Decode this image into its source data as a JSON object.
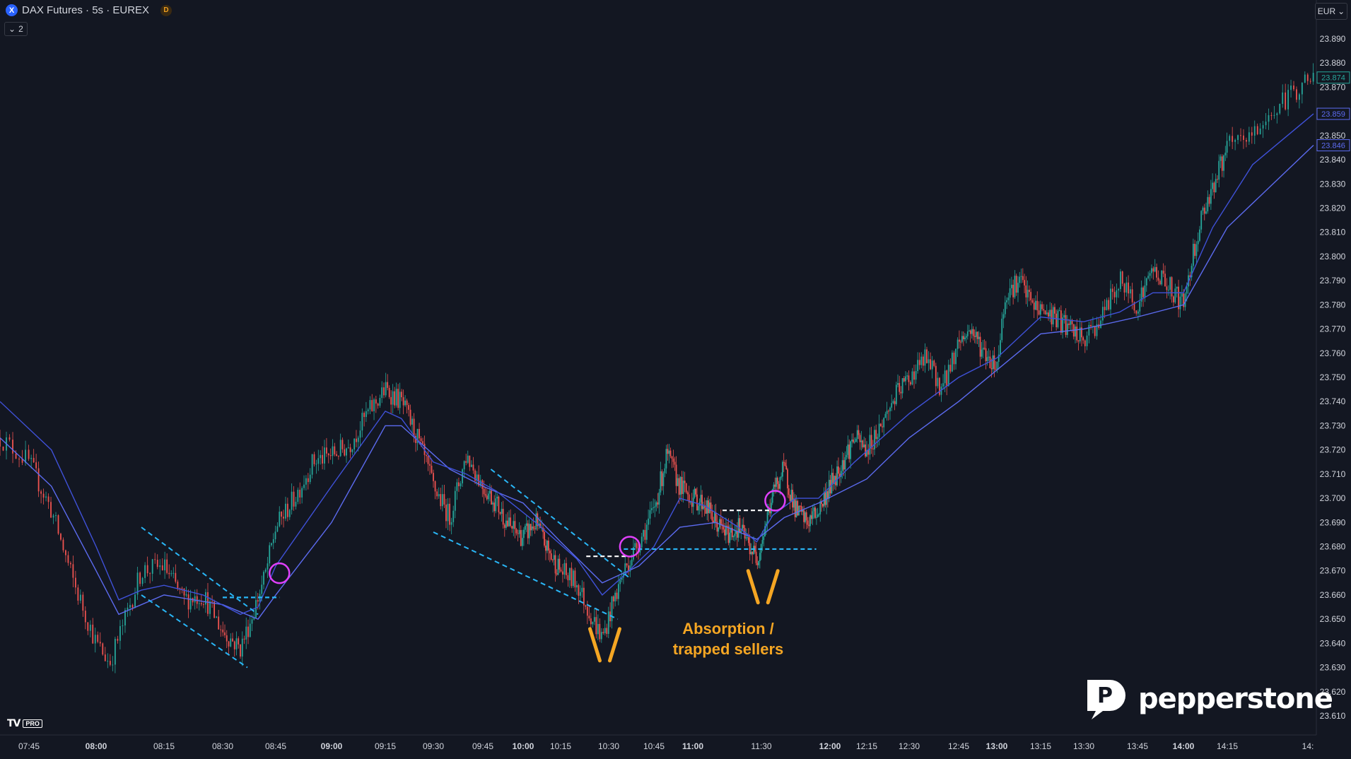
{
  "header": {
    "symbol_badge": "X",
    "title": "DAX Futures · 5s · EUREX",
    "session_badge": "D",
    "collapse_label": "2",
    "currency": "EUR"
  },
  "chart_data": {
    "type": "candlestick",
    "y_ticks": [
      "23.610",
      "23.620",
      "23.630",
      "23.640",
      "23.650",
      "23.660",
      "23.670",
      "23.680",
      "23.690",
      "23.700",
      "23.710",
      "23.720",
      "23.730",
      "23.740",
      "23.750",
      "23.760",
      "23.770",
      "23.780",
      "23.790",
      "23.800",
      "23.810",
      "23.820",
      "23.830",
      "23.840",
      "23.850",
      "23.860",
      "23.870",
      "23.880",
      "23.890"
    ],
    "ylim": [
      23605,
      23895
    ],
    "x_ticks": [
      {
        "label": "07:45",
        "bold": false
      },
      {
        "label": "08:00",
        "bold": true
      },
      {
        "label": "08:15",
        "bold": false
      },
      {
        "label": "08:30",
        "bold": false
      },
      {
        "label": "08:45",
        "bold": false
      },
      {
        "label": "09:00",
        "bold": true
      },
      {
        "label": "09:15",
        "bold": false
      },
      {
        "label": "09:30",
        "bold": false
      },
      {
        "label": "09:45",
        "bold": false
      },
      {
        "label": "10:00",
        "bold": true
      },
      {
        "label": "10:15",
        "bold": false
      },
      {
        "label": "10:30",
        "bold": false
      },
      {
        "label": "10:45",
        "bold": false
      },
      {
        "label": "11:00",
        "bold": true
      },
      {
        "label": "11:30",
        "bold": false
      },
      {
        "label": "12:00",
        "bold": true
      },
      {
        "label": "12:15",
        "bold": false
      },
      {
        "label": "12:30",
        "bold": false
      },
      {
        "label": "12:45",
        "bold": false
      },
      {
        "label": "13:00",
        "bold": true
      },
      {
        "label": "13:15",
        "bold": false
      },
      {
        "label": "13:30",
        "bold": false
      },
      {
        "label": "13:45",
        "bold": false
      },
      {
        "label": "14:00",
        "bold": true
      },
      {
        "label": "14:15",
        "bold": false
      },
      {
        "label": "14:",
        "bold": false
      }
    ],
    "price_tags": [
      {
        "value": "23.874",
        "color": "#26a69a"
      },
      {
        "value": "23.859",
        "color": "#5c6bf0"
      },
      {
        "value": "23.846",
        "color": "#5c6bf0"
      }
    ],
    "price_path": [
      [
        "07:40",
        23725
      ],
      [
        "07:45",
        23715
      ],
      [
        "07:50",
        23695
      ],
      [
        "07:55",
        23665
      ],
      [
        "08:00",
        23640
      ],
      [
        "08:03",
        23632
      ],
      [
        "08:06",
        23648
      ],
      [
        "08:10",
        23670
      ],
      [
        "08:15",
        23672
      ],
      [
        "08:20",
        23658
      ],
      [
        "08:25",
        23660
      ],
      [
        "08:30",
        23645
      ],
      [
        "08:35",
        23638
      ],
      [
        "08:38",
        23650
      ],
      [
        "08:42",
        23668
      ],
      [
        "08:45",
        23688
      ],
      [
        "08:50",
        23700
      ],
      [
        "08:55",
        23715
      ],
      [
        "09:00",
        23718
      ],
      [
        "09:05",
        23722
      ],
      [
        "09:10",
        23735
      ],
      [
        "09:15",
        23745
      ],
      [
        "09:20",
        23740
      ],
      [
        "09:25",
        23725
      ],
      [
        "09:30",
        23705
      ],
      [
        "09:35",
        23692
      ],
      [
        "09:40",
        23718
      ],
      [
        "09:45",
        23705
      ],
      [
        "09:50",
        23698
      ],
      [
        "09:55",
        23688
      ],
      [
        "10:00",
        23684
      ],
      [
        "10:05",
        23690
      ],
      [
        "10:10",
        23678
      ],
      [
        "10:15",
        23670
      ],
      [
        "10:20",
        23665
      ],
      [
        "10:25",
        23650
      ],
      [
        "10:28",
        23642
      ],
      [
        "10:31",
        23655
      ],
      [
        "10:35",
        23670
      ],
      [
        "10:40",
        23682
      ],
      [
        "10:45",
        23695
      ],
      [
        "10:50",
        23718
      ],
      [
        "10:55",
        23705
      ],
      [
        "11:00",
        23700
      ],
      [
        "11:05",
        23698
      ],
      [
        "11:10",
        23690
      ],
      [
        "11:15",
        23685
      ],
      [
        "11:20",
        23688
      ],
      [
        "11:25",
        23680
      ],
      [
        "11:28",
        23675
      ],
      [
        "11:32",
        23690
      ],
      [
        "11:36",
        23705
      ],
      [
        "11:40",
        23712
      ],
      [
        "11:45",
        23695
      ],
      [
        "11:50",
        23690
      ],
      [
        "11:55",
        23695
      ],
      [
        "12:00",
        23705
      ],
      [
        "12:05",
        23715
      ],
      [
        "12:10",
        23725
      ],
      [
        "12:15",
        23720
      ],
      [
        "12:20",
        23730
      ],
      [
        "12:25",
        23742
      ],
      [
        "12:30",
        23750
      ],
      [
        "12:35",
        23758
      ],
      [
        "12:40",
        23745
      ],
      [
        "12:45",
        23765
      ],
      [
        "12:50",
        23770
      ],
      [
        "12:55",
        23760
      ],
      [
        "13:00",
        23755
      ],
      [
        "13:03",
        23785
      ],
      [
        "13:08",
        23790
      ],
      [
        "13:12",
        23780
      ],
      [
        "13:15",
        23778
      ],
      [
        "13:20",
        23775
      ],
      [
        "13:25",
        23770
      ],
      [
        "13:30",
        23765
      ],
      [
        "13:35",
        23775
      ],
      [
        "13:40",
        23790
      ],
      [
        "13:45",
        23780
      ],
      [
        "13:50",
        23795
      ],
      [
        "13:55",
        23788
      ],
      [
        "14:00",
        23780
      ],
      [
        "14:03",
        23800
      ],
      [
        "14:07",
        23820
      ],
      [
        "14:12",
        23835
      ],
      [
        "14:15",
        23845
      ],
      [
        "14:20",
        23850
      ],
      [
        "14:24",
        23860
      ],
      [
        "14:28",
        23868
      ],
      [
        "14:32",
        23875
      ]
    ],
    "ema_fast": [
      [
        "07:40",
        23740
      ],
      [
        "07:50",
        23720
      ],
      [
        "08:00",
        23680
      ],
      [
        "08:05",
        23658
      ],
      [
        "08:10",
        23662
      ],
      [
        "08:15",
        23664
      ],
      [
        "08:25",
        23660
      ],
      [
        "08:35",
        23652
      ],
      [
        "08:40",
        23655
      ],
      [
        "08:45",
        23672
      ],
      [
        "09:00",
        23705
      ],
      [
        "09:15",
        23736
      ],
      [
        "09:20",
        23733
      ],
      [
        "09:30",
        23715
      ],
      [
        "09:40",
        23710
      ],
      [
        "09:50",
        23703
      ],
      [
        "10:05",
        23690
      ],
      [
        "10:20",
        23675
      ],
      [
        "10:28",
        23660
      ],
      [
        "10:35",
        23668
      ],
      [
        "10:45",
        23680
      ],
      [
        "10:55",
        23700
      ],
      [
        "11:05",
        23697
      ],
      [
        "11:20",
        23688
      ],
      [
        "11:28",
        23682
      ],
      [
        "11:35",
        23693
      ],
      [
        "11:45",
        23700
      ],
      [
        "11:55",
        23700
      ],
      [
        "12:10",
        23715
      ],
      [
        "12:30",
        23735
      ],
      [
        "12:45",
        23750
      ],
      [
        "13:00",
        23758
      ],
      [
        "13:15",
        23775
      ],
      [
        "13:30",
        23773
      ],
      [
        "13:40",
        23777
      ],
      [
        "13:50",
        23785
      ],
      [
        "14:00",
        23785
      ],
      [
        "14:10",
        23812
      ],
      [
        "14:20",
        23838
      ],
      [
        "14:32",
        23859
      ]
    ],
    "ema_slow": [
      [
        "07:40",
        23725
      ],
      [
        "07:50",
        23705
      ],
      [
        "08:00",
        23670
      ],
      [
        "08:05",
        23652
      ],
      [
        "08:15",
        23660
      ],
      [
        "08:30",
        23656
      ],
      [
        "08:40",
        23650
      ],
      [
        "08:45",
        23660
      ],
      [
        "09:00",
        23690
      ],
      [
        "09:15",
        23730
      ],
      [
        "09:20",
        23730
      ],
      [
        "09:35",
        23712
      ],
      [
        "09:45",
        23705
      ],
      [
        "10:00",
        23698
      ],
      [
        "10:15",
        23682
      ],
      [
        "10:28",
        23665
      ],
      [
        "10:40",
        23672
      ],
      [
        "10:55",
        23688
      ],
      [
        "11:10",
        23690
      ],
      [
        "11:28",
        23683
      ],
      [
        "11:40",
        23692
      ],
      [
        "11:55",
        23698
      ],
      [
        "12:15",
        23708
      ],
      [
        "12:30",
        23725
      ],
      [
        "12:45",
        23740
      ],
      [
        "13:00",
        23753
      ],
      [
        "13:15",
        23768
      ],
      [
        "13:30",
        23770
      ],
      [
        "13:45",
        23775
      ],
      [
        "14:00",
        23780
      ],
      [
        "14:15",
        23812
      ],
      [
        "14:32",
        23846
      ]
    ],
    "trendlines": [
      {
        "from": [
          "08:10",
          23688
        ],
        "to": [
          "08:40",
          23652
        ],
        "style": "dashed",
        "color": "#29b6f6"
      },
      {
        "from": [
          "08:10",
          23660
        ],
        "to": [
          "08:37",
          23630
        ],
        "style": "dashed",
        "color": "#29b6f6"
      },
      {
        "from": [
          "09:48",
          23712
        ],
        "to": [
          "10:37",
          23667
        ],
        "style": "dashed",
        "color": "#29b6f6"
      },
      {
        "from": [
          "09:30",
          23686
        ],
        "to": [
          "10:33",
          23650
        ],
        "style": "dashed",
        "color": "#29b6f6"
      }
    ],
    "levels": [
      {
        "from": [
          "08:30",
          23659
        ],
        "to": [
          "08:46",
          23659
        ],
        "color": "#29b6f6"
      },
      {
        "from": [
          "10:35",
          23679
        ],
        "to": [
          "11:54",
          23679
        ],
        "color": "#29b6f6"
      },
      {
        "from": [
          "10:23",
          23676
        ],
        "to": [
          "10:36",
          23676
        ],
        "color": "#ffffff"
      },
      {
        "from": [
          "11:13",
          23695
        ],
        "to": [
          "11:36",
          23695
        ],
        "color": "#ffffff"
      }
    ],
    "markers_circle": [
      [
        "08:46",
        23669
      ],
      [
        "10:37",
        23680
      ],
      [
        "11:36",
        23699
      ]
    ],
    "markers_v": [
      [
        "10:29",
        23646
      ],
      [
        "11:31",
        23670
      ]
    ],
    "annotation": [
      "Absorption /",
      "trapped sellers"
    ]
  },
  "branding": {
    "tv_mark": "TV",
    "tv_pro": "PRO",
    "broker": "pepperstone",
    "broker_icon": "P"
  },
  "colors": {
    "up": "#26a69a",
    "down": "#ef5350",
    "ema_fast": "#3f51d8",
    "ema_slow": "#5c6bf0",
    "circle": "#e040fb",
    "v_marker": "#f5a623"
  }
}
